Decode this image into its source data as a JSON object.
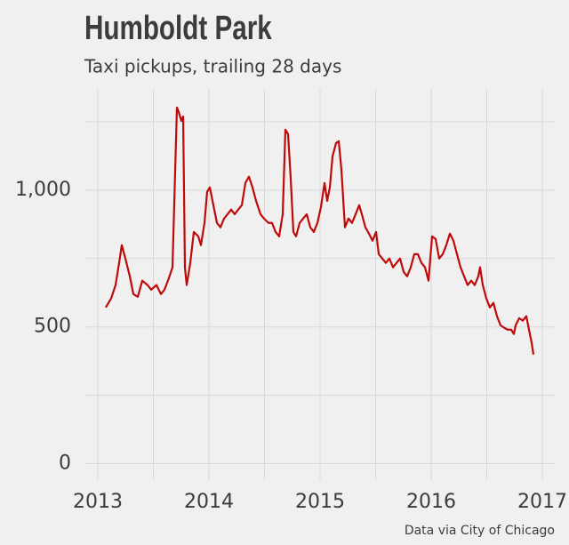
{
  "chart_data": {
    "type": "line",
    "title": "Humboldt Park",
    "subtitle": "Taxi pickups, trailing 28 days",
    "caption": "Data via City of Chicago",
    "xlim": [
      2012.88,
      2017.12
    ],
    "xticks": [
      2013,
      2014,
      2015,
      2016,
      2017
    ],
    "ylim": [
      -60,
      1370
    ],
    "yticks": [
      0,
      500,
      {
        "value": 1000,
        "label": "1,000"
      }
    ],
    "grid": true,
    "series": [
      {
        "name": "Taxi pickups",
        "color": "#bf0a0a",
        "x": [
          2013.072,
          2013.12,
          2013.16,
          2013.192,
          2013.216,
          2013.248,
          2013.288,
          2013.32,
          2013.36,
          2013.4,
          2013.448,
          2013.48,
          2013.528,
          2013.568,
          2013.6,
          2013.64,
          2013.672,
          2013.712,
          2013.728,
          2013.752,
          2013.768,
          2013.784,
          2013.8,
          2013.832,
          2013.864,
          2013.904,
          2013.928,
          2013.96,
          2013.984,
          2014.008,
          2014.04,
          2014.072,
          2014.104,
          2014.136,
          2014.168,
          2014.2,
          2014.232,
          2014.264,
          2014.296,
          2014.328,
          2014.36,
          2014.392,
          2014.424,
          2014.464,
          2014.496,
          2014.536,
          2014.568,
          2014.6,
          2014.632,
          2014.664,
          2014.688,
          2014.712,
          2014.736,
          2014.76,
          2014.784,
          2014.816,
          2014.848,
          2014.88,
          2014.912,
          2014.944,
          2014.976,
          2015.008,
          2015.04,
          2015.064,
          2015.088,
          2015.112,
          2015.144,
          2015.168,
          2015.192,
          2015.224,
          2015.256,
          2015.288,
          2015.32,
          2015.352,
          2015.376,
          2015.408,
          2015.44,
          2015.472,
          2015.504,
          2015.528,
          2015.56,
          2015.592,
          2015.624,
          2015.656,
          2015.688,
          2015.72,
          2015.752,
          2015.784,
          2015.816,
          2015.848,
          2015.88,
          2015.912,
          2015.944,
          2015.976,
          2016.008,
          2016.04,
          2016.072,
          2016.104,
          2016.136,
          2016.168,
          2016.2,
          2016.232,
          2016.264,
          2016.296,
          2016.328,
          2016.36,
          2016.392,
          2016.424,
          2016.44,
          2016.464,
          2016.496,
          2016.528,
          2016.56,
          2016.592,
          2016.624,
          2016.656,
          2016.688,
          2016.72,
          2016.744,
          2016.76,
          2016.792,
          2016.824,
          2016.856,
          2016.88,
          2016.904,
          2016.92
        ],
        "values": [
          571,
          604,
          653,
          734,
          799,
          750,
          685,
          620,
          610,
          669,
          653,
          636,
          653,
          620,
          636,
          679,
          718,
          1302,
          1286,
          1253,
          1269,
          718,
          653,
          734,
          847,
          831,
          799,
          880,
          994,
          1010,
          945,
          880,
          864,
          896,
          912,
          929,
          912,
          929,
          945,
          1026,
          1049,
          1010,
          961,
          912,
          896,
          880,
          880,
          847,
          831,
          912,
          1221,
          1205,
          1042,
          847,
          831,
          880,
          896,
          912,
          864,
          847,
          880,
          938,
          1026,
          961,
          1010,
          1123,
          1172,
          1179,
          1075,
          864,
          896,
          880,
          912,
          945,
          912,
          864,
          841,
          815,
          847,
          766,
          750,
          734,
          750,
          718,
          734,
          750,
          701,
          685,
          718,
          766,
          766,
          734,
          718,
          669,
          831,
          821,
          750,
          766,
          799,
          841,
          815,
          766,
          718,
          685,
          653,
          669,
          653,
          685,
          718,
          653,
          604,
          571,
          588,
          539,
          506,
          497,
          490,
          490,
          474,
          506,
          532,
          523,
          539,
          490,
          442,
          399
        ]
      }
    ]
  }
}
